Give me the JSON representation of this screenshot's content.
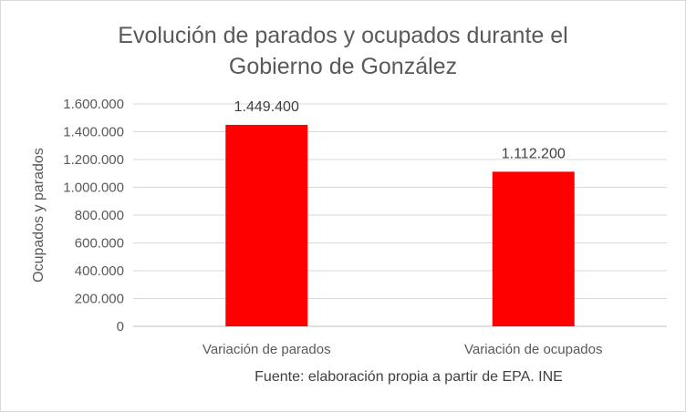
{
  "chart_data": {
    "type": "bar",
    "title": "Evolución de parados y ocupados durante el Gobierno de González",
    "title_lines": [
      "Evolución de parados y ocupados durante el",
      "Gobierno de González"
    ],
    "categories": [
      "Variación de parados",
      "Variación de ocupados"
    ],
    "values": [
      1449400,
      1112200
    ],
    "data_labels": [
      "1.449.400",
      "1.112.200"
    ],
    "xlabel": "",
    "ylabel": "Ocupados y parados",
    "ylim": [
      0,
      1600000
    ],
    "yticks": [
      0,
      200000,
      400000,
      600000,
      800000,
      1000000,
      1200000,
      1400000,
      1600000
    ],
    "ytick_labels": [
      "0",
      "200.000",
      "400.000",
      "600.000",
      "800.000",
      "1.000.000",
      "1.200.000",
      "1.400.000",
      "1.600.000"
    ],
    "grid": true,
    "legend": "none",
    "bar_color": "#FF0000",
    "source": "Fuente: elaboración propia a partir de EPA. INE"
  }
}
